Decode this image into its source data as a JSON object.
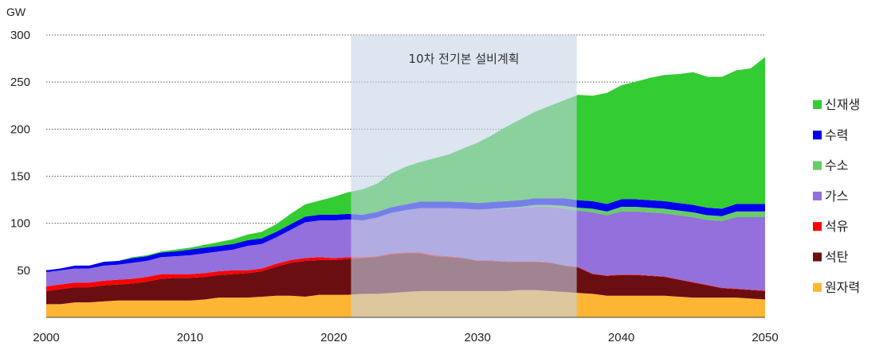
{
  "chart_data": {
    "type": "area",
    "stacked": true,
    "ylabel": "GW",
    "ylim": [
      0,
      300
    ],
    "yticks": [
      50,
      100,
      150,
      200,
      250,
      300
    ],
    "xlim": [
      2000,
      2050
    ],
    "xticks": [
      2000,
      2010,
      2020,
      2030,
      2040,
      2050
    ],
    "grid": "horizontal-dotted",
    "legend_position": "right",
    "annotation": {
      "text": "10차 전기본 설비계획",
      "x_start": 2021.2,
      "x_end": 2036.9,
      "color": "#c5d3e6"
    },
    "x": [
      2000,
      2001,
      2002,
      2003,
      2004,
      2005,
      2006,
      2007,
      2008,
      2009,
      2010,
      2011,
      2012,
      2013,
      2014,
      2015,
      2016,
      2017,
      2018,
      2019,
      2020,
      2021,
      2022,
      2023,
      2024,
      2025,
      2026,
      2027,
      2028,
      2029,
      2030,
      2031,
      2032,
      2033,
      2034,
      2035,
      2036,
      2037,
      2038,
      2039,
      2040,
      2041,
      2042,
      2043,
      2044,
      2045,
      2046,
      2047,
      2048,
      2049,
      2050
    ],
    "series": [
      {
        "name": "원자력",
        "color": "#ffb534",
        "values": [
          14,
          14,
          16,
          16,
          17,
          18,
          18,
          18,
          18,
          18,
          18,
          19,
          21,
          21,
          21,
          22,
          23,
          23,
          22,
          24,
          24,
          24,
          25,
          25,
          26,
          27,
          28,
          28,
          28,
          28,
          28,
          28,
          28,
          29,
          29,
          28,
          27,
          26,
          25,
          23,
          23,
          23,
          23,
          23,
          22,
          21,
          21,
          21,
          21,
          20,
          19
        ]
      },
      {
        "name": "석탄",
        "color": "#6b0e12",
        "values": [
          14,
          16,
          16,
          16,
          17,
          17,
          18,
          20,
          23,
          24,
          24,
          24,
          24,
          25,
          26,
          27,
          31,
          35,
          38,
          37,
          37,
          38,
          38,
          39,
          41,
          41,
          40,
          37,
          36,
          35,
          32,
          32,
          31,
          30,
          30,
          30,
          28,
          27,
          21,
          21,
          22,
          22,
          21,
          20,
          18,
          16,
          13,
          10,
          9,
          9,
          9
        ]
      },
      {
        "name": "석유",
        "color": "#ff0000",
        "values": [
          5,
          5,
          5,
          5,
          5,
          5,
          5,
          5,
          5,
          4,
          4,
          4,
          4,
          4,
          3,
          3,
          3,
          3,
          3,
          3,
          2,
          2,
          1,
          1,
          1,
          1,
          1,
          1,
          1,
          0.5,
          0.5,
          0.5,
          0.5,
          0.5,
          0.5,
          0.5,
          0.5,
          0.5,
          0.5,
          0.5,
          0.5,
          0.5,
          0.5,
          0.5,
          0.5,
          0.5,
          0.5,
          0.5,
          0.5,
          0.5,
          0.5
        ]
      },
      {
        "name": "가스",
        "color": "#9370db",
        "values": [
          15,
          15,
          15,
          15,
          16,
          16,
          17,
          17,
          18,
          19,
          20,
          21,
          21,
          22,
          26,
          26,
          28,
          32,
          38,
          39,
          40,
          40,
          39,
          41,
          43,
          45,
          47,
          50,
          51,
          52,
          54,
          55,
          56,
          57,
          58,
          59,
          60,
          60,
          65,
          64,
          67,
          67,
          67,
          67,
          68,
          69,
          69,
          71,
          76,
          77,
          78
        ]
      },
      {
        "name": "수소",
        "color": "#66cc66",
        "values": [
          0,
          0,
          0,
          0,
          0,
          0,
          0,
          0,
          0,
          0,
          0,
          0,
          0,
          0,
          0,
          0,
          0,
          0,
          0,
          0,
          0,
          0,
          0,
          0,
          0,
          0,
          0,
          0,
          0,
          0,
          0,
          0,
          1,
          1,
          2,
          2,
          3,
          3,
          4,
          4,
          5,
          5,
          5,
          5,
          5,
          5,
          5,
          5,
          6,
          6,
          6
        ]
      },
      {
        "name": "수력",
        "color": "#0000ee",
        "values": [
          2,
          2,
          3,
          3,
          4,
          4,
          5,
          5,
          5,
          5,
          6,
          6,
          6,
          6,
          6,
          6,
          6,
          6,
          6,
          6,
          6,
          6,
          6,
          6,
          6,
          6,
          7,
          7,
          7,
          7,
          7,
          7,
          7,
          7,
          7,
          7,
          8,
          8,
          8,
          8,
          8,
          8,
          8,
          8,
          8,
          8,
          8,
          8,
          8,
          8,
          8
        ]
      },
      {
        "name": "신재생",
        "color": "#33cc33",
        "values": [
          0,
          0,
          0,
          0,
          0,
          0,
          1,
          1,
          1,
          2,
          2,
          3,
          4,
          5,
          6,
          7,
          8,
          11,
          13,
          15,
          19,
          23,
          27,
          30,
          36,
          40,
          42,
          46,
          50,
          57,
          64,
          71,
          79,
          86,
          92,
          98,
          104,
          112,
          112,
          118,
          121,
          125,
          130,
          134,
          137,
          141,
          139,
          140,
          142,
          144,
          156
        ]
      }
    ]
  }
}
